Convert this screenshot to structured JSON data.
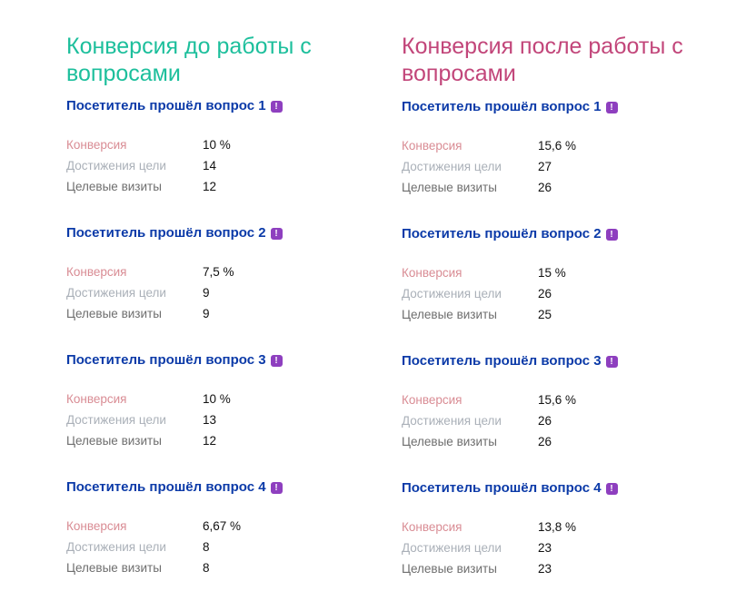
{
  "labels": {
    "conversion": "Конверсия",
    "goals": "Достижения цели",
    "visits": "Целевые визиты"
  },
  "colors": {
    "before_title": "#1dbf9c",
    "after_title": "#c2467a",
    "heading": "#0b3aa8",
    "badge": "#8e3fbf"
  },
  "before": {
    "title": "Конверсия до работы с вопросами",
    "groups": [
      {
        "heading": "Посетитель прошёл вопрос 1",
        "conversion": "10 %",
        "goals": "14",
        "visits": "12"
      },
      {
        "heading": "Посетитель прошёл вопрос 2",
        "conversion": "7,5 %",
        "goals": "9",
        "visits": "9"
      },
      {
        "heading": "Посетитель прошёл вопрос 3",
        "conversion": "10 %",
        "goals": "13",
        "visits": "12"
      },
      {
        "heading": "Посетитель прошёл вопрос 4",
        "conversion": "6,67 %",
        "goals": "8",
        "visits": "8"
      }
    ]
  },
  "after": {
    "title": "Конверсия после работы с вопросами",
    "groups": [
      {
        "heading": "Посетитель прошёл вопрос 1",
        "conversion": "15,6 %",
        "goals": "27",
        "visits": "26"
      },
      {
        "heading": "Посетитель прошёл вопрос 2",
        "conversion": "15 %",
        "goals": "26",
        "visits": "25"
      },
      {
        "heading": "Посетитель прошёл вопрос 3",
        "conversion": "15,6 %",
        "goals": "26",
        "visits": "26"
      },
      {
        "heading": "Посетитель прошёл вопрос 4",
        "conversion": "13,8 %",
        "goals": "23",
        "visits": "23"
      }
    ]
  }
}
